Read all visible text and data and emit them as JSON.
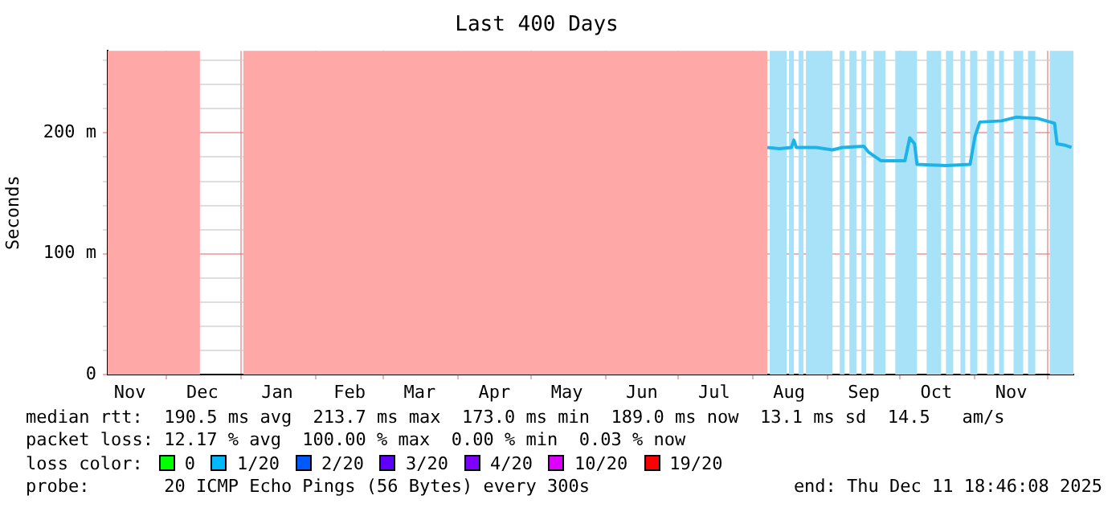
{
  "chart_data": {
    "type": "line",
    "title": "Last 400 Days",
    "ylabel": "Seconds",
    "xlim": [
      "2024-11-06T18:46",
      "2025-12-11T18:46"
    ],
    "xticks": [
      {
        "value": "2024-11-16",
        "label": "Nov"
      },
      {
        "value": "2024-12-01",
        "label": null
      },
      {
        "value": "2024-12-16",
        "label": "Dec"
      },
      {
        "value": "2025-01-01",
        "label": null
      },
      {
        "value": "2025-01-16",
        "label": "Jan"
      },
      {
        "value": "2025-02-01",
        "label": null
      },
      {
        "value": "2025-02-15",
        "label": "Feb"
      },
      {
        "value": "2025-03-01",
        "label": null
      },
      {
        "value": "2025-03-16",
        "label": "Mar"
      },
      {
        "value": "2025-04-01",
        "label": null
      },
      {
        "value": "2025-04-16",
        "label": "Apr"
      },
      {
        "value": "2025-05-01",
        "label": null
      },
      {
        "value": "2025-05-16",
        "label": "May"
      },
      {
        "value": "2025-06-01",
        "label": null
      },
      {
        "value": "2025-06-16",
        "label": "Jun"
      },
      {
        "value": "2025-07-01",
        "label": null
      },
      {
        "value": "2025-07-16",
        "label": "Jul"
      },
      {
        "value": "2025-08-01",
        "label": null
      },
      {
        "value": "2025-08-16",
        "label": "Aug"
      },
      {
        "value": "2025-09-01",
        "label": null
      },
      {
        "value": "2025-09-16",
        "label": "Sep"
      },
      {
        "value": "2025-10-01",
        "label": null
      },
      {
        "value": "2025-10-16",
        "label": "Oct"
      },
      {
        "value": "2025-11-01",
        "label": null
      },
      {
        "value": "2025-11-16",
        "label": "Nov"
      },
      {
        "value": "2025-12-01",
        "label": null
      }
    ],
    "ylim": [
      0,
      268
    ],
    "yticks": [
      0,
      {
        "value": 20,
        "label": null
      },
      {
        "value": 40,
        "label": null
      },
      {
        "value": 60,
        "label": null
      },
      {
        "value": 80,
        "label": null
      },
      {
        "value": 100,
        "label": "100 m"
      },
      {
        "value": 120,
        "label": null
      },
      {
        "value": 140,
        "label": null
      },
      {
        "value": 160,
        "label": null
      },
      {
        "value": 180,
        "label": null
      },
      {
        "value": 200,
        "label": "200 m"
      },
      {
        "value": 220,
        "label": null
      },
      {
        "value": 240,
        "label": null
      },
      {
        "value": 260,
        "label": null
      }
    ],
    "grid": true,
    "legend": false,
    "marker": "none",
    "line_style": "solid",
    "series": [
      {
        "color": "#1cb4e8",
        "x": [
          "2025-08-07",
          "2025-08-12",
          "2025-08-17",
          "2025-08-18",
          "2025-08-19",
          "2025-08-27",
          "2025-09-03",
          "2025-09-07",
          "2025-09-16",
          "2025-09-18",
          "2025-09-23",
          "2025-10-03",
          "2025-10-05",
          "2025-10-07",
          "2025-10-08",
          "2025-10-20",
          "2025-10-30",
          "2025-11-01",
          "2025-11-03",
          "2025-11-12",
          "2025-11-18",
          "2025-11-27",
          "2025-12-04",
          "2025-12-05",
          "2025-12-08",
          "2025-12-11"
        ],
        "values": [
          188,
          187,
          188,
          194,
          188,
          188,
          186,
          188,
          189,
          184,
          177,
          177,
          196,
          191,
          174,
          173,
          174,
          197,
          209,
          210,
          213,
          212,
          208,
          191,
          190,
          188
        ]
      }
    ],
    "bands": [
      {
        "axis": "x",
        "from": "2024-11-06T18:46",
        "to": "2024-12-15",
        "color": "#ffa8a8"
      },
      {
        "axis": "x",
        "from": "2025-01-02",
        "to": "2025-08-07",
        "color": "#ffa8a8"
      },
      {
        "axis": "x",
        "from": "2025-08-08",
        "to": "2025-08-15",
        "color": "#a8e2f8"
      },
      {
        "axis": "x",
        "from": "2025-08-16",
        "to": "2025-08-18",
        "color": "#a8e2f8"
      },
      {
        "axis": "x",
        "from": "2025-08-20",
        "to": "2025-08-22",
        "color": "#a8e2f8"
      },
      {
        "axis": "x",
        "from": "2025-08-23",
        "to": "2025-09-03",
        "color": "#a8e2f8"
      },
      {
        "axis": "x",
        "from": "2025-09-06",
        "to": "2025-09-08",
        "color": "#a8e2f8"
      },
      {
        "axis": "x",
        "from": "2025-09-10",
        "to": "2025-09-13",
        "color": "#a8e2f8"
      },
      {
        "axis": "x",
        "from": "2025-09-15",
        "to": "2025-09-17",
        "color": "#a8e2f8"
      },
      {
        "axis": "x",
        "from": "2025-09-20",
        "to": "2025-09-25",
        "color": "#a8e2f8"
      },
      {
        "axis": "x",
        "from": "2025-09-29",
        "to": "2025-10-08",
        "color": "#a8e2f8"
      },
      {
        "axis": "x",
        "from": "2025-10-12",
        "to": "2025-10-18",
        "color": "#a8e2f8"
      },
      {
        "axis": "x",
        "from": "2025-10-20",
        "to": "2025-10-23",
        "color": "#a8e2f8"
      },
      {
        "axis": "x",
        "from": "2025-10-26",
        "to": "2025-10-28",
        "color": "#a8e2f8"
      },
      {
        "axis": "x",
        "from": "2025-10-30",
        "to": "2025-11-02",
        "color": "#a8e2f8"
      },
      {
        "axis": "x",
        "from": "2025-11-06",
        "to": "2025-11-09",
        "color": "#a8e2f8"
      },
      {
        "axis": "x",
        "from": "2025-11-11",
        "to": "2025-11-13",
        "color": "#a8e2f8"
      },
      {
        "axis": "x",
        "from": "2025-11-17",
        "to": "2025-11-21",
        "color": "#a8e2f8"
      },
      {
        "axis": "x",
        "from": "2025-11-23",
        "to": "2025-11-26",
        "color": "#a8e2f8"
      },
      {
        "axis": "x",
        "from": "2025-12-02",
        "to": "2025-12-11T18:46",
        "color": "#a8e2f8"
      }
    ],
    "annotations": [
      "median rtt:  190.5 ms avg  213.7 ms max  173.0 ms min  189.0 ms now  13.1 ms sd  14.5   am/s",
      "packet loss: 12.17 % avg  100.00 % max  0.00 % min  0.03 % now",
      "loss color:",
      "0",
      "1/20",
      "2/20",
      "3/20",
      "4/20",
      "10/20",
      "19/20",
      "probe:       20 ICMP Echo Pings (56 Bytes) every 300s",
      "end: Thu Dec 11 18:46:08 2025"
    ]
  }
}
